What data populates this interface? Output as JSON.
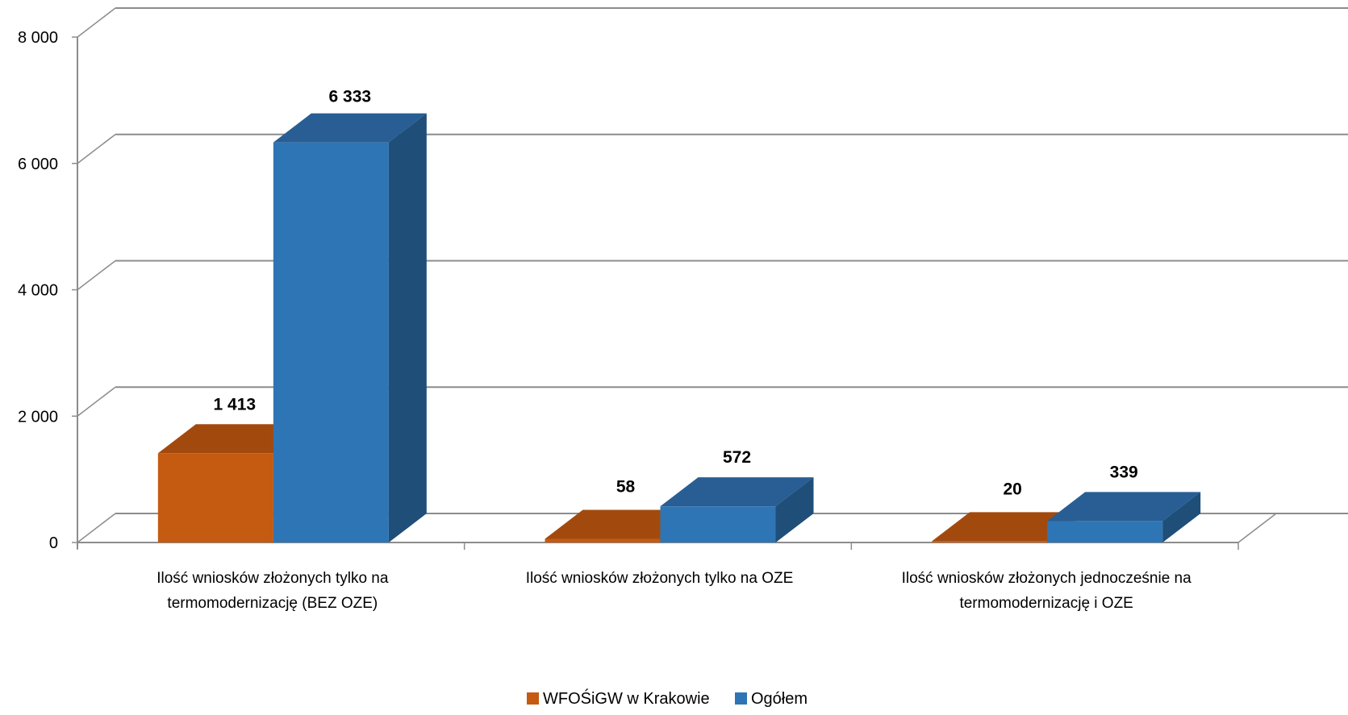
{
  "chart_data": {
    "type": "bar",
    "title": "",
    "xlabel": "",
    "ylabel": "",
    "ylim": [
      0,
      8000
    ],
    "yticks": [
      0,
      2000,
      4000,
      6000,
      8000
    ],
    "ytick_labels": [
      "0",
      "2 000",
      "4 000",
      "6 000",
      "8 000"
    ],
    "grid": true,
    "style": "3d-clustered",
    "legend_position": "bottom",
    "categories": [
      [
        "Ilość wniosków złożonych tylko na",
        "termomodernizację (BEZ OZE)"
      ],
      [
        "Ilość wniosków złożonych tylko na OZE"
      ],
      [
        "Ilość wniosków złożonych jednocześnie na",
        "termomodernizację i OZE"
      ]
    ],
    "series": [
      {
        "name": "WFOŚiGW w Krakowie",
        "values": [
          1413,
          58,
          20
        ],
        "labels": [
          "1 413",
          "58",
          "20"
        ],
        "color": "#C55A11",
        "top_color": "#A24A0E",
        "side_color": "#7F3A0A"
      },
      {
        "name": "Ogółem",
        "values": [
          6333,
          572,
          339
        ],
        "labels": [
          "6 333",
          "572",
          "339"
        ],
        "color": "#2E75B6",
        "top_color": "#285E93",
        "side_color": "#1F4E79"
      }
    ]
  }
}
